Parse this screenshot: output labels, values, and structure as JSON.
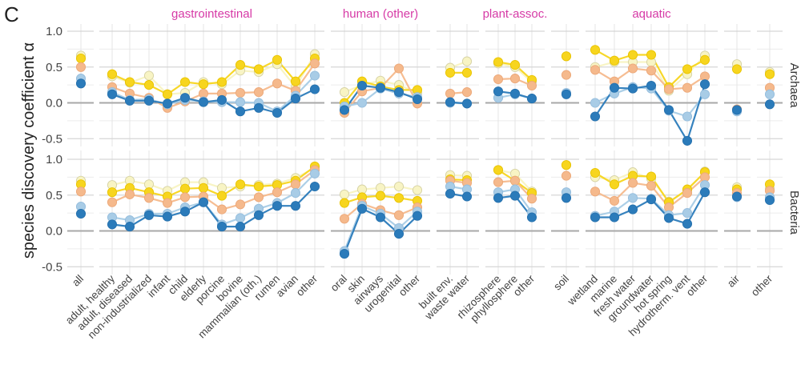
{
  "panel_letter": "C",
  "chart_data": {
    "type": "line",
    "ylabel": "species discovery coefficient α",
    "ylim": [
      -0.6,
      1.1
    ],
    "yticks": [
      1.0,
      0.5,
      0.0,
      -0.5
    ],
    "ytick_labels": [
      "1.0",
      "0.5",
      "0.0",
      "-0.5"
    ],
    "groups": [
      {
        "label": "",
        "categories": [
          "all"
        ]
      },
      {
        "label": "gastrointestinal",
        "categories": [
          "adult, healthy",
          "adult, diseased",
          "non-industrialized",
          "infant",
          "child",
          "elderly",
          "porcine",
          "bovine",
          "mammalian (oth.)",
          "rumen",
          "avian",
          "other"
        ]
      },
      {
        "label": "human (other)",
        "categories": [
          "oral",
          "skin",
          "airways",
          "urogenital",
          "other"
        ]
      },
      {
        "label": "",
        "categories": [
          "built env.",
          "waste water"
        ]
      },
      {
        "label": "plant-assoc.",
        "categories": [
          "rhizosphere",
          "phyllosphere",
          "other"
        ]
      },
      {
        "label": "",
        "categories": [
          "soil"
        ]
      },
      {
        "label": "aquatic",
        "categories": [
          "wetland",
          "marine",
          "fresh water",
          "groundwater",
          "hot spring",
          "hydrotherm. vent",
          "other"
        ]
      },
      {
        "label": "",
        "categories": [
          "air"
        ]
      },
      {
        "label": "",
        "categories": [
          "other"
        ]
      }
    ],
    "series_colors": {
      "s1": "#2b7bba",
      "s2": "#a8cce6",
      "s3": "#f5b98c",
      "s4": "#f7d51e",
      "s5": "#f8f4c4"
    },
    "panels": [
      {
        "label": "Archaea",
        "series": [
          {
            "name": "s1",
            "values": [
              [
                0.27
              ],
              [
                0.12,
                0.03,
                0.03,
                -0.01,
                0.07,
                0.01,
                0.04,
                -0.12,
                -0.07,
                -0.14,
                0.06,
                0.19
              ],
              [
                -0.1,
                0.24,
                0.21,
                0.15,
                0.05
              ],
              [
                0.01,
                -0.01
              ],
              [
                0.16,
                0.13,
                0.06
              ],
              [
                0.12
              ],
              [
                -0.19,
                0.21,
                0.2,
                0.24,
                -0.1,
                -0.53,
                0.26
              ],
              [
                -0.1
              ],
              [
                -0.02
              ]
            ]
          },
          {
            "name": "s2",
            "values": [
              [
                0.34
              ],
              [
                0.15,
                0.04,
                0.05,
                -0.02,
                0.04,
                0.02,
                0.01,
                0.01,
                0.0,
                -0.12,
                0.1,
                0.38
              ],
              [
                -0.05,
                0.0,
                0.2,
                0.13,
                0.08
              ],
              [
                0.0,
                -0.01
              ],
              [
                0.07,
                0.12,
                0.06
              ],
              [
                0.14
              ],
              [
                0.0,
                0.13,
                0.22,
                0.2,
                -0.11,
                -0.19,
                0.12
              ],
              [
                -0.12
              ],
              [
                0.12
              ]
            ]
          },
          {
            "name": "s3",
            "values": [
              [
                0.5
              ],
              [
                0.22,
                0.13,
                0.07,
                -0.07,
                0.02,
                0.13,
                0.13,
                0.14,
                0.15,
                0.27,
                0.17,
                0.55
              ],
              [
                -0.14,
                0.16,
                0.21,
                0.48,
                -0.01
              ],
              [
                0.13,
                0.15
              ],
              [
                0.33,
                0.34,
                0.24
              ],
              [
                0.39
              ],
              [
                0.46,
                0.3,
                0.48,
                0.45,
                0.19,
                0.21,
                0.37
              ],
              [
                -0.09
              ],
              [
                0.21
              ]
            ]
          },
          {
            "name": "s4",
            "values": [
              [
                0.62
              ],
              [
                0.4,
                0.29,
                0.25,
                0.12,
                0.29,
                0.26,
                0.29,
                0.53,
                0.47,
                0.6,
                0.3,
                0.62
              ],
              [
                0.0,
                0.3,
                0.23,
                0.18,
                0.18
              ],
              [
                0.42,
                0.42
              ],
              [
                0.57,
                0.53,
                0.32
              ],
              [
                0.65
              ],
              [
                0.74,
                0.59,
                0.67,
                0.67,
                0.22,
                0.47,
                0.6
              ],
              [
                0.47
              ],
              [
                0.4
              ]
            ]
          },
          {
            "name": "s5",
            "values": [
              [
                0.66
              ],
              [
                0.37,
                0.28,
                0.38,
                0.12,
                0.14,
                0.29,
                0.26,
                0.45,
                0.43,
                0.54,
                0.22,
                0.68
              ],
              [
                0.15,
                0.25,
                0.31,
                0.25,
                0.14
              ],
              [
                0.49,
                0.58
              ],
              [
                0.55,
                0.5,
                0.29
              ],
              [
                0.65
              ],
              [
                0.5,
                0.57,
                0.57,
                0.57,
                0.17,
                0.4,
                0.66
              ],
              [
                0.54
              ],
              [
                0.43
              ]
            ]
          }
        ]
      },
      {
        "label": "Bacteria",
        "series": [
          {
            "name": "s1",
            "values": [
              [
                0.24
              ],
              [
                0.09,
                0.06,
                0.22,
                0.2,
                0.27,
                0.4,
                0.06,
                0.06,
                0.22,
                0.35,
                0.35,
                0.62
              ],
              [
                -0.32,
                0.31,
                0.19,
                -0.04,
                0.21
              ],
              [
                0.52,
                0.48
              ],
              [
                0.46,
                0.49,
                0.19
              ],
              [
                0.46
              ],
              [
                0.19,
                0.19,
                0.3,
                0.44,
                0.18,
                0.1,
                0.54
              ],
              [
                0.48
              ],
              [
                0.43
              ]
            ]
          },
          {
            "name": "s2",
            "values": [
              [
                0.34
              ],
              [
                0.19,
                0.15,
                0.24,
                0.24,
                0.33,
                0.4,
                0.09,
                0.18,
                0.31,
                0.39,
                0.53,
                0.8
              ],
              [
                -0.28,
                0.35,
                0.24,
                0.04,
                0.27
              ],
              [
                0.62,
                0.58
              ],
              [
                0.54,
                0.58,
                0.26
              ],
              [
                0.54
              ],
              [
                0.21,
                0.27,
                0.46,
                0.45,
                0.22,
                0.25,
                0.64
              ],
              [
                0.47
              ],
              [
                0.47
              ]
            ]
          },
          {
            "name": "s3",
            "values": [
              [
                0.55
              ],
              [
                0.4,
                0.51,
                0.46,
                0.39,
                0.47,
                0.48,
                0.3,
                0.37,
                0.47,
                0.54,
                0.65,
                0.85
              ],
              [
                0.17,
                0.38,
                0.29,
                0.22,
                0.33
              ],
              [
                0.7,
                0.67
              ],
              [
                0.68,
                0.7,
                0.45
              ],
              [
                0.77
              ],
              [
                0.55,
                0.42,
                0.67,
                0.63,
                0.33,
                0.53,
                0.75
              ],
              [
                0.53
              ],
              [
                0.56
              ]
            ]
          },
          {
            "name": "s4",
            "values": [
              [
                0.65
              ],
              [
                0.54,
                0.6,
                0.54,
                0.48,
                0.59,
                0.6,
                0.49,
                0.65,
                0.62,
                0.64,
                0.7,
                0.9
              ],
              [
                0.39,
                0.47,
                0.49,
                0.46,
                0.42
              ],
              [
                0.72,
                0.71
              ],
              [
                0.85,
                0.7,
                0.53
              ],
              [
                0.92
              ],
              [
                0.81,
                0.65,
                0.77,
                0.76,
                0.4,
                0.58,
                0.82
              ],
              [
                0.58
              ],
              [
                0.65
              ]
            ]
          },
          {
            "name": "s5",
            "values": [
              [
                0.7
              ],
              [
                0.64,
                0.7,
                0.65,
                0.56,
                0.68,
                0.68,
                0.6,
                0.62,
                0.64,
                0.66,
                0.74,
                0.88
              ],
              [
                0.51,
                0.58,
                0.6,
                0.62,
                0.57
              ],
              [
                0.78,
                0.77
              ],
              [
                0.85,
                0.8,
                0.55
              ],
              [
                0.92
              ],
              [
                0.75,
                0.71,
                0.82,
                0.73,
                0.41,
                0.56,
                0.83
              ],
              [
                0.61
              ],
              [
                0.59
              ]
            ]
          }
        ]
      }
    ]
  }
}
